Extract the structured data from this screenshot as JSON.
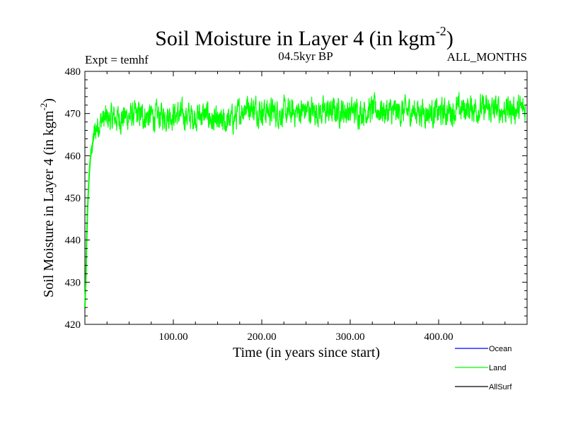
{
  "chart_data": {
    "type": "line",
    "title": "Soil Moisture in Layer 4 (in kgm",
    "title_superscript": "-2",
    "title_close": ")",
    "subtitle_left": "Expt = temhf",
    "subtitle_center": "04.5kyr BP",
    "subtitle_right": "ALL_MONTHS",
    "xlabel": "Time (in years since start)",
    "ylabel": "Soil Moisture in Layer 4 (in kgm",
    "ylabel_superscript": "-2",
    "ylabel_close": ")",
    "xlim": [
      0,
      500
    ],
    "ylim": [
      420,
      480
    ],
    "x_ticks": [
      100,
      200,
      300,
      400
    ],
    "x_tick_labels": [
      "100.00",
      "200.00",
      "300.00",
      "400.00"
    ],
    "y_ticks": [
      420,
      430,
      440,
      450,
      460,
      470,
      480
    ],
    "y_tick_labels": [
      "420",
      "430",
      "440",
      "450",
      "460",
      "470",
      "480"
    ],
    "grid": false,
    "legend_position": "bottom-right",
    "series": [
      {
        "name": "Ocean",
        "color": "#0000ff",
        "values": []
      },
      {
        "name": "Land",
        "color": "#00ff00",
        "x": [
          0,
          1,
          2,
          3,
          4,
          5,
          6,
          8,
          10,
          12,
          15,
          20,
          30,
          40,
          50,
          60,
          70,
          80,
          90,
          100,
          110,
          120,
          130,
          140,
          145,
          150,
          160,
          170,
          180,
          185,
          190,
          200,
          210,
          220,
          230,
          240,
          250,
          260,
          270,
          280,
          290,
          300,
          310,
          320,
          330,
          340,
          350,
          360,
          370,
          380,
          390,
          400,
          410,
          420,
          430,
          440,
          450,
          460,
          470,
          480,
          490,
          498
        ],
        "values": [
          424,
          430,
          440,
          447,
          452,
          456,
          459,
          462,
          464.5,
          466,
          467.5,
          468.5,
          468.8,
          469,
          469.3,
          469.5,
          469.4,
          469.2,
          469.6,
          469.8,
          469.5,
          469.3,
          469.6,
          469.5,
          468,
          467.5,
          468,
          469,
          471.5,
          472,
          471.2,
          470.8,
          470.5,
          470.2,
          470,
          470.4,
          470.8,
          470.6,
          470.3,
          470.5,
          470.7,
          470.4,
          470.6,
          470.8,
          470.9,
          470.5,
          470.2,
          470.4,
          470.6,
          470.5,
          470.3,
          470.1,
          470.4,
          470.8,
          471.2,
          471.3,
          471,
          470.8,
          470.9,
          471,
          470.9,
          471
        ],
        "fluctuation_amplitude": 3.5
      },
      {
        "name": "AllSurf",
        "color": "#000000",
        "values": []
      }
    ]
  }
}
